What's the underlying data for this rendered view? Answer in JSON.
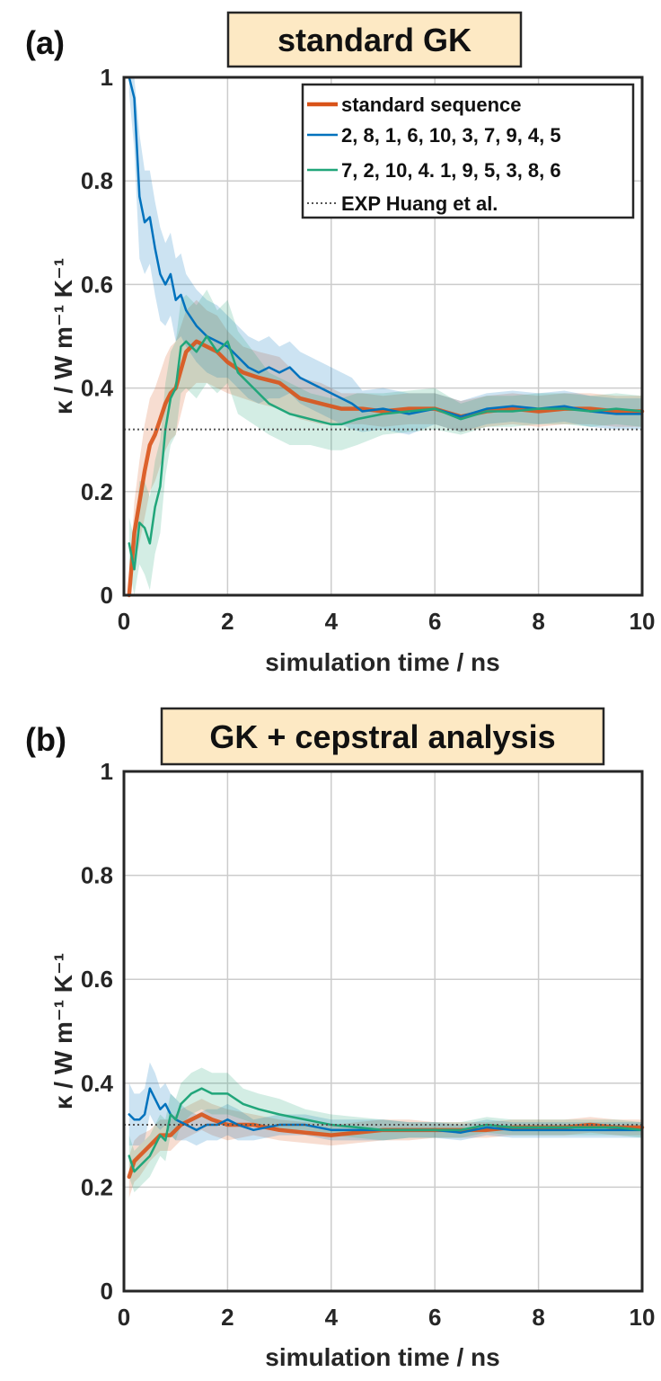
{
  "colors": {
    "standard": "#d95319",
    "blue": "#0072bd",
    "green": "#21a67a",
    "exp": "#555555",
    "title_bg": "#fde9c4",
    "grid": "#cccccc",
    "frame": "#262626"
  },
  "chart_data": [
    {
      "type": "line",
      "panel_label": "(a)",
      "title": "standard GK",
      "xlabel": "simulation time / ns",
      "ylabel": "κ / W m⁻¹ K⁻¹",
      "xlim": [
        0,
        10
      ],
      "ylim": [
        0,
        1
      ],
      "xticks": [
        "0",
        "2",
        "4",
        "6",
        "8",
        "10"
      ],
      "yticks": [
        "0",
        "0.2",
        "0.4",
        "0.6",
        "0.8",
        "1"
      ],
      "grid": true,
      "legend_position": "top-right",
      "reference": {
        "name": "EXP Huang et al.",
        "value": 0.32,
        "style": "dotted"
      },
      "series": [
        {
          "name": "standard sequence",
          "color": "#d95319",
          "width": 4.5,
          "x": [
            0.1,
            0.2,
            0.3,
            0.4,
            0.5,
            0.6,
            0.7,
            0.8,
            0.9,
            1.0,
            1.2,
            1.4,
            1.6,
            1.8,
            2.0,
            2.3,
            2.6,
            3.0,
            3.4,
            3.8,
            4.2,
            4.6,
            5.0,
            5.5,
            6.0,
            6.5,
            7.0,
            7.5,
            8.0,
            8.5,
            9.0,
            9.5,
            10.0
          ],
          "y": [
            0.0,
            0.12,
            0.18,
            0.24,
            0.29,
            0.31,
            0.34,
            0.37,
            0.39,
            0.4,
            0.47,
            0.49,
            0.48,
            0.47,
            0.45,
            0.43,
            0.42,
            0.41,
            0.38,
            0.37,
            0.36,
            0.36,
            0.355,
            0.36,
            0.36,
            0.345,
            0.355,
            0.36,
            0.355,
            0.36,
            0.36,
            0.355,
            0.355
          ],
          "band": [
            0.02,
            0.06,
            0.08,
            0.09,
            0.09,
            0.09,
            0.09,
            0.09,
            0.09,
            0.09,
            0.08,
            0.08,
            0.07,
            0.07,
            0.06,
            0.05,
            0.05,
            0.05,
            0.04,
            0.04,
            0.03,
            0.03,
            0.03,
            0.03,
            0.03,
            0.03,
            0.03,
            0.03,
            0.03,
            0.03,
            0.03,
            0.03,
            0.03
          ]
        },
        {
          "name": "2, 8, 1, 6, 10, 3, 7, 9, 4, 5",
          "color": "#0072bd",
          "width": 2.5,
          "x": [
            0.1,
            0.2,
            0.3,
            0.4,
            0.5,
            0.6,
            0.7,
            0.8,
            0.9,
            1.0,
            1.1,
            1.2,
            1.4,
            1.6,
            1.8,
            2.0,
            2.2,
            2.4,
            2.6,
            2.8,
            3.0,
            3.2,
            3.4,
            3.6,
            3.8,
            4.0,
            4.2,
            4.4,
            4.6,
            5.0,
            5.5,
            6.0,
            6.5,
            7.0,
            7.5,
            8.0,
            8.5,
            9.0,
            9.5,
            10.0
          ],
          "y": [
            1.0,
            0.96,
            0.77,
            0.72,
            0.73,
            0.67,
            0.62,
            0.6,
            0.62,
            0.57,
            0.58,
            0.55,
            0.52,
            0.5,
            0.49,
            0.48,
            0.46,
            0.44,
            0.43,
            0.44,
            0.43,
            0.44,
            0.42,
            0.41,
            0.4,
            0.39,
            0.38,
            0.37,
            0.355,
            0.36,
            0.35,
            0.36,
            0.345,
            0.36,
            0.365,
            0.36,
            0.365,
            0.355,
            0.35,
            0.35
          ],
          "band": [
            0.03,
            0.1,
            0.12,
            0.1,
            0.09,
            0.09,
            0.09,
            0.08,
            0.08,
            0.08,
            0.08,
            0.07,
            0.07,
            0.07,
            0.07,
            0.06,
            0.06,
            0.06,
            0.06,
            0.06,
            0.05,
            0.05,
            0.05,
            0.05,
            0.05,
            0.05,
            0.05,
            0.05,
            0.04,
            0.04,
            0.04,
            0.03,
            0.03,
            0.03,
            0.03,
            0.03,
            0.03,
            0.03,
            0.03,
            0.03
          ]
        },
        {
          "name": "7, 2, 10, 4. 1, 9, 5, 3, 8, 6",
          "color": "#21a67a",
          "width": 2.5,
          "x": [
            0.1,
            0.2,
            0.3,
            0.4,
            0.5,
            0.6,
            0.7,
            0.8,
            0.9,
            1.0,
            1.1,
            1.2,
            1.4,
            1.6,
            1.8,
            2.0,
            2.2,
            2.5,
            2.8,
            3.2,
            3.6,
            4.0,
            4.2,
            4.5,
            5.0,
            5.5,
            6.0,
            6.5,
            7.0,
            7.5,
            8.0,
            8.5,
            9.0,
            9.5,
            10.0
          ],
          "y": [
            0.1,
            0.05,
            0.14,
            0.13,
            0.1,
            0.17,
            0.21,
            0.32,
            0.38,
            0.4,
            0.48,
            0.49,
            0.47,
            0.5,
            0.47,
            0.49,
            0.43,
            0.4,
            0.37,
            0.35,
            0.34,
            0.33,
            0.33,
            0.34,
            0.35,
            0.355,
            0.36,
            0.34,
            0.355,
            0.355,
            0.36,
            0.36,
            0.355,
            0.36,
            0.355
          ],
          "band": [
            0.05,
            0.06,
            0.08,
            0.09,
            0.09,
            0.09,
            0.09,
            0.09,
            0.09,
            0.09,
            0.09,
            0.09,
            0.09,
            0.09,
            0.08,
            0.08,
            0.08,
            0.07,
            0.06,
            0.06,
            0.05,
            0.05,
            0.05,
            0.05,
            0.04,
            0.04,
            0.04,
            0.03,
            0.03,
            0.03,
            0.03,
            0.03,
            0.03,
            0.03,
            0.03
          ]
        }
      ],
      "legend": [
        {
          "label": "standard sequence",
          "color": "#d95319",
          "style": "solid",
          "width": 4.5
        },
        {
          "label": "2, 8, 1, 6, 10, 3, 7, 9, 4, 5",
          "color": "#0072bd",
          "style": "solid",
          "width": 2.5
        },
        {
          "label": "7, 2, 10, 4. 1, 9, 5, 3, 8, 6",
          "color": "#21a67a",
          "style": "solid",
          "width": 2.5
        },
        {
          "label": "EXP Huang et al.",
          "color": "#555555",
          "style": "dotted",
          "width": 2
        }
      ]
    },
    {
      "type": "line",
      "panel_label": "(b)",
      "title": "GK + cepstral analysis",
      "xlabel": "simulation time / ns",
      "ylabel": "κ / W m⁻¹ K⁻¹",
      "xlim": [
        0,
        10
      ],
      "ylim": [
        0,
        1
      ],
      "xticks": [
        "0",
        "2",
        "4",
        "6",
        "8",
        "10"
      ],
      "yticks": [
        "0",
        "0.2",
        "0.4",
        "0.6",
        "0.8",
        "1"
      ],
      "grid": true,
      "reference": {
        "name": "EXP Huang et al.",
        "value": 0.32,
        "style": "dotted"
      },
      "series": [
        {
          "name": "standard sequence",
          "color": "#d95319",
          "width": 4.5,
          "x": [
            0.1,
            0.2,
            0.3,
            0.5,
            0.7,
            0.9,
            1.1,
            1.3,
            1.5,
            1.7,
            2.0,
            2.5,
            3.0,
            3.5,
            4.0,
            4.5,
            5.0,
            5.5,
            6.0,
            6.5,
            7.0,
            7.5,
            8.0,
            8.5,
            9.0,
            9.5,
            10.0
          ],
          "y": [
            0.22,
            0.25,
            0.26,
            0.28,
            0.3,
            0.3,
            0.32,
            0.33,
            0.34,
            0.33,
            0.32,
            0.32,
            0.31,
            0.305,
            0.3,
            0.305,
            0.31,
            0.31,
            0.31,
            0.31,
            0.31,
            0.315,
            0.315,
            0.315,
            0.32,
            0.315,
            0.315
          ],
          "band": [
            0.04,
            0.04,
            0.04,
            0.03,
            0.03,
            0.03,
            0.03,
            0.03,
            0.03,
            0.03,
            0.03,
            0.02,
            0.02,
            0.02,
            0.02,
            0.02,
            0.02,
            0.02,
            0.015,
            0.015,
            0.015,
            0.015,
            0.015,
            0.015,
            0.015,
            0.015,
            0.015
          ]
        },
        {
          "name": "2, 8, 1, 6, 10, 3, 7, 9, 4, 5",
          "color": "#0072bd",
          "width": 2.5,
          "x": [
            0.1,
            0.2,
            0.3,
            0.4,
            0.5,
            0.6,
            0.7,
            0.8,
            0.9,
            1.0,
            1.2,
            1.4,
            1.6,
            1.8,
            2.0,
            2.2,
            2.5,
            3.0,
            3.5,
            4.0,
            4.5,
            5.0,
            5.5,
            6.0,
            6.5,
            7.0,
            7.5,
            8.0,
            8.5,
            9.0,
            9.5,
            10.0
          ],
          "y": [
            0.34,
            0.33,
            0.33,
            0.34,
            0.39,
            0.37,
            0.35,
            0.36,
            0.34,
            0.33,
            0.32,
            0.31,
            0.32,
            0.32,
            0.33,
            0.32,
            0.31,
            0.32,
            0.32,
            0.31,
            0.31,
            0.31,
            0.31,
            0.31,
            0.305,
            0.315,
            0.31,
            0.31,
            0.31,
            0.31,
            0.31,
            0.31
          ],
          "band": [
            0.06,
            0.05,
            0.05,
            0.05,
            0.05,
            0.05,
            0.04,
            0.04,
            0.04,
            0.04,
            0.03,
            0.03,
            0.03,
            0.03,
            0.03,
            0.03,
            0.02,
            0.02,
            0.02,
            0.02,
            0.02,
            0.02,
            0.015,
            0.015,
            0.015,
            0.015,
            0.015,
            0.015,
            0.015,
            0.015,
            0.015,
            0.015
          ]
        },
        {
          "name": "7, 2, 10, 4. 1, 9, 5, 3, 8, 6",
          "color": "#21a67a",
          "width": 2.5,
          "x": [
            0.1,
            0.2,
            0.3,
            0.4,
            0.5,
            0.6,
            0.7,
            0.8,
            0.9,
            1.0,
            1.1,
            1.3,
            1.5,
            1.7,
            2.0,
            2.3,
            2.6,
            3.0,
            3.5,
            4.0,
            4.5,
            5.0,
            5.5,
            6.0,
            6.5,
            7.0,
            7.5,
            8.0,
            8.5,
            9.0,
            9.5,
            10.0
          ],
          "y": [
            0.26,
            0.23,
            0.24,
            0.25,
            0.26,
            0.28,
            0.3,
            0.29,
            0.34,
            0.33,
            0.36,
            0.38,
            0.39,
            0.38,
            0.38,
            0.36,
            0.35,
            0.34,
            0.33,
            0.32,
            0.315,
            0.31,
            0.31,
            0.31,
            0.31,
            0.32,
            0.315,
            0.315,
            0.315,
            0.315,
            0.315,
            0.31
          ],
          "band": [
            0.04,
            0.04,
            0.04,
            0.04,
            0.04,
            0.04,
            0.04,
            0.04,
            0.04,
            0.04,
            0.04,
            0.04,
            0.04,
            0.04,
            0.04,
            0.03,
            0.03,
            0.03,
            0.02,
            0.02,
            0.02,
            0.02,
            0.015,
            0.015,
            0.015,
            0.015,
            0.015,
            0.015,
            0.015,
            0.015,
            0.015,
            0.015
          ]
        }
      ]
    }
  ]
}
